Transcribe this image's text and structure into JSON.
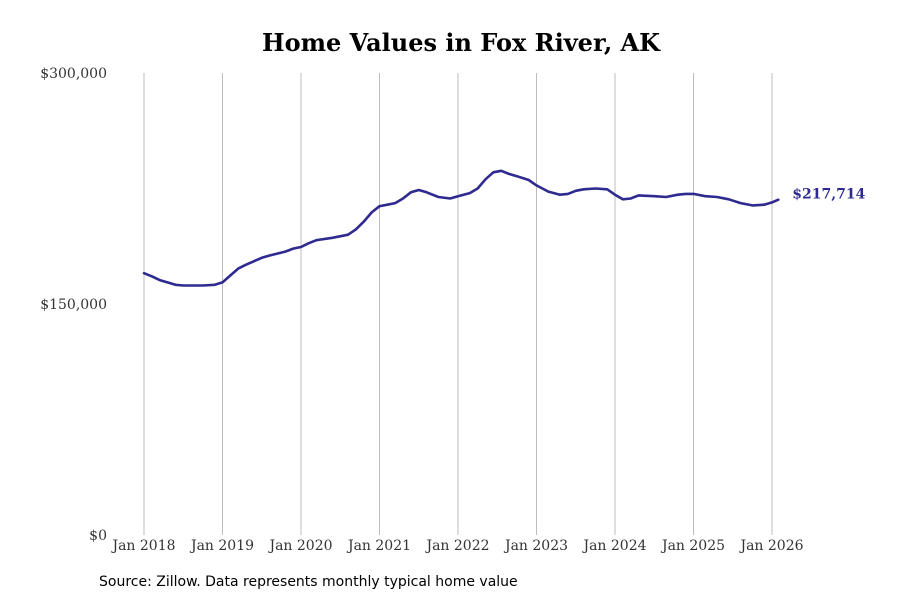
{
  "chart_data": {
    "type": "line",
    "title": "Home Values in Fox River, AK",
    "xlabel": "",
    "ylabel": "",
    "ylim": [
      0,
      300000
    ],
    "y_ticks": [
      {
        "value": 0,
        "label": "$0"
      },
      {
        "value": 150000,
        "label": "$150,000"
      },
      {
        "value": 300000,
        "label": "$300,000"
      }
    ],
    "x_ticks": [
      {
        "value": 2018.0,
        "label": "Jan 2018"
      },
      {
        "value": 2019.0,
        "label": "Jan 2019"
      },
      {
        "value": 2020.0,
        "label": "Jan 2020"
      },
      {
        "value": 2021.0,
        "label": "Jan 2021"
      },
      {
        "value": 2022.0,
        "label": "Jan 2022"
      },
      {
        "value": 2023.0,
        "label": "Jan 2023"
      },
      {
        "value": 2024.0,
        "label": "Jan 2024"
      },
      {
        "value": 2025.0,
        "label": "Jan 2025"
      },
      {
        "value": 2026.0,
        "label": "Jan 2026"
      }
    ],
    "xlim": [
      2018.0,
      2026.0
    ],
    "grid": "vertical",
    "series": [
      {
        "name": "Typical home value",
        "color": "#2e2a8f",
        "end_label": "$217,714",
        "x": [
          2018.0,
          2018.1,
          2018.2,
          2018.3,
          2018.4,
          2018.5,
          2018.6,
          2018.75,
          2018.9,
          2019.0,
          2019.1,
          2019.2,
          2019.3,
          2019.5,
          2019.6,
          2019.8,
          2019.9,
          2020.0,
          2020.1,
          2020.2,
          2020.4,
          2020.6,
          2020.7,
          2020.8,
          2020.9,
          2021.0,
          2021.1,
          2021.2,
          2021.3,
          2021.4,
          2021.5,
          2021.6,
          2021.75,
          2021.9,
          2022.0,
          2022.15,
          2022.25,
          2022.35,
          2022.45,
          2022.55,
          2022.65,
          2022.75,
          2022.9,
          2023.0,
          2023.15,
          2023.3,
          2023.4,
          2023.5,
          2023.6,
          2023.75,
          2023.9,
          2024.0,
          2024.1,
          2024.2,
          2024.3,
          2024.5,
          2024.65,
          2024.8,
          2024.9,
          2025.0,
          2025.15,
          2025.3,
          2025.45,
          2025.6,
          2025.75,
          2025.9,
          2026.0,
          2026.08
        ],
        "values": [
          170000,
          168000,
          165500,
          164000,
          162500,
          162000,
          162000,
          162000,
          162500,
          164000,
          168500,
          173000,
          175500,
          180000,
          181500,
          184000,
          186000,
          187000,
          189500,
          191500,
          193000,
          195000,
          198500,
          203500,
          209500,
          213500,
          214500,
          215500,
          218500,
          222500,
          224000,
          222500,
          219500,
          218500,
          220000,
          222000,
          225000,
          231000,
          235500,
          236500,
          234500,
          233000,
          230500,
          227000,
          223000,
          221000,
          221500,
          223500,
          224500,
          225000,
          224500,
          221000,
          218000,
          218500,
          220500,
          220000,
          219500,
          221000,
          221500,
          221500,
          220000,
          219500,
          218000,
          215500,
          214000,
          214500,
          216000,
          217714
        ]
      }
    ]
  },
  "footer": {
    "source": "Source: Zillow. Data represents monthly typical home value"
  }
}
